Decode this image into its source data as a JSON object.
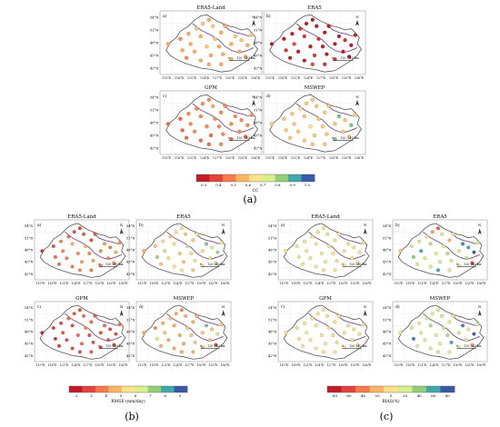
{
  "figure": {
    "group_labels": {
      "a": "(a)",
      "b": "(b)",
      "c": "(c)"
    }
  },
  "lat_ticks": [
    "54°N",
    "51°N",
    "48°N",
    "45°N",
    "42°N"
  ],
  "lon_ticks": [
    "115°E",
    "118°E",
    "121°E",
    "124°E",
    "127°E",
    "130°E",
    "133°E",
    "136°E"
  ],
  "scale_bar": {
    "labels": [
      "0",
      "120",
      "240 km"
    ]
  },
  "north_label": "N",
  "panel_titles": [
    "ERA5-Land",
    "ERA5",
    "GPM",
    "MSWEP"
  ],
  "panel_letters": [
    "a)",
    "b)",
    "c)",
    "d)"
  ],
  "colorbars": {
    "cc": {
      "label": "CC",
      "ticks": [
        "0.3",
        "0.4",
        "0.5",
        "0.6",
        "0.7",
        "0.8",
        "0.9",
        "1.0"
      ],
      "colors": [
        "#c21a27",
        "#e3413a",
        "#f77b4a",
        "#fdb463",
        "#fde28c",
        "#d9ef8b",
        "#92cf77",
        "#40a8ab",
        "#3a58a8"
      ]
    },
    "rmse": {
      "label": "RMSE (mm/day)",
      "ticks": [
        "2",
        "3",
        "4",
        "5",
        "6",
        "7",
        "8",
        "9"
      ],
      "colors": [
        "#c21a27",
        "#e3413a",
        "#f77b4a",
        "#fdb463",
        "#fde28c",
        "#d9ef8b",
        "#92cf77",
        "#40a8ab",
        "#3a58a8"
      ]
    },
    "bias": {
      "label": "BIAS(%)",
      "ticks": [
        "-80",
        "-60",
        "-40",
        "-20",
        "0",
        "20",
        "40",
        "60",
        "80"
      ],
      "colors": [
        "#c21a27",
        "#e3413a",
        "#f77b4a",
        "#fdb463",
        "#fde28c",
        "#d9ef8b",
        "#92cf77",
        "#40a8ab",
        "#3a58a8"
      ]
    }
  },
  "stations": [
    [
      0.08,
      0.52
    ],
    [
      0.2,
      0.44
    ],
    [
      0.28,
      0.36
    ],
    [
      0.36,
      0.28
    ],
    [
      0.42,
      0.2
    ],
    [
      0.48,
      0.14
    ],
    [
      0.52,
      0.24
    ],
    [
      0.4,
      0.4
    ],
    [
      0.3,
      0.52
    ],
    [
      0.22,
      0.62
    ],
    [
      0.34,
      0.64
    ],
    [
      0.46,
      0.56
    ],
    [
      0.54,
      0.44
    ],
    [
      0.6,
      0.34
    ],
    [
      0.64,
      0.24
    ],
    [
      0.58,
      0.56
    ],
    [
      0.5,
      0.7
    ],
    [
      0.4,
      0.78
    ],
    [
      0.62,
      0.68
    ],
    [
      0.7,
      0.52
    ],
    [
      0.74,
      0.4
    ],
    [
      0.8,
      0.46
    ],
    [
      0.86,
      0.54
    ],
    [
      0.78,
      0.64
    ],
    [
      0.7,
      0.76
    ],
    [
      0.84,
      0.72
    ],
    [
      0.9,
      0.38
    ],
    [
      0.6,
      0.84
    ],
    [
      0.48,
      0.84
    ],
    [
      0.26,
      0.74
    ]
  ],
  "station_values": {
    "cc": {
      "ERA5-Land": [
        0.55,
        0.5,
        0.55,
        0.6,
        0.6,
        0.55,
        0.6,
        0.55,
        0.55,
        0.55,
        0.55,
        0.6,
        0.6,
        0.55,
        0.55,
        0.55,
        0.55,
        0.55,
        0.55,
        0.55,
        0.6,
        0.6,
        0.55,
        0.55,
        0.55,
        0.55,
        0.6,
        0.55,
        0.55,
        0.5
      ],
      "ERA5": [
        0.3,
        0.3,
        0.3,
        0.35,
        0.3,
        0.3,
        0.3,
        0.35,
        0.4,
        0.35,
        0.3,
        0.3,
        0.35,
        0.3,
        0.3,
        0.3,
        0.35,
        0.3,
        0.3,
        0.3,
        0.3,
        0.35,
        0.3,
        0.3,
        0.35,
        0.3,
        0.3,
        0.35,
        0.4,
        0.3
      ],
      "GPM": [
        0.45,
        0.45,
        0.5,
        0.5,
        0.5,
        0.5,
        0.55,
        0.5,
        0.5,
        0.45,
        0.5,
        0.5,
        0.5,
        0.5,
        0.5,
        0.5,
        0.45,
        0.45,
        0.5,
        0.5,
        0.5,
        0.5,
        0.5,
        0.5,
        0.45,
        0.45,
        0.5,
        0.5,
        0.45,
        0.45
      ],
      "MSWEP": [
        0.6,
        0.6,
        0.6,
        0.65,
        0.6,
        0.6,
        0.6,
        0.6,
        0.6,
        0.6,
        0.6,
        0.65,
        0.6,
        0.6,
        0.6,
        0.6,
        0.6,
        0.6,
        0.6,
        0.6,
        0.85,
        0.6,
        0.85,
        0.6,
        0.85,
        0.6,
        0.6,
        0.6,
        0.6,
        0.6
      ]
    },
    "rmse": {
      "ERA5-Land": [
        2.5,
        3.0,
        4.0,
        3.5,
        3.0,
        2.8,
        3.2,
        4.5,
        4.0,
        3.5,
        3.8,
        4.0,
        4.5,
        3.0,
        3.2,
        4.0,
        4.2,
        3.8,
        4.4,
        4.0,
        4.2,
        3.8,
        4.5,
        4.0,
        3.8,
        4.2,
        4.0,
        3.8,
        4.0,
        3.5
      ],
      "ERA5": [
        4.5,
        5.0,
        5.5,
        5.0,
        5.5,
        6.0,
        5.0,
        5.5,
        6.5,
        7.0,
        5.5,
        5.0,
        6.5,
        5.0,
        5.5,
        6.5,
        5.0,
        5.5,
        6.0,
        6.0,
        7.5,
        6.0,
        7.0,
        6.0,
        5.5,
        6.5,
        5.5,
        5.0,
        5.5,
        5.0
      ],
      "GPM": [
        2.2,
        2.8,
        3.0,
        3.5,
        3.2,
        3.0,
        3.5,
        3.0,
        3.2,
        2.5,
        3.0,
        3.5,
        4.0,
        3.5,
        3.2,
        3.0,
        3.5,
        3.0,
        3.2,
        3.0,
        3.5,
        3.0,
        3.0,
        3.2,
        3.0,
        3.0,
        3.5,
        3.2,
        3.0,
        2.8
      ],
      "MSWEP": [
        4.5,
        4.0,
        4.5,
        5.0,
        4.5,
        4.0,
        4.5,
        4.5,
        5.0,
        6.0,
        4.5,
        4.5,
        5.0,
        4.5,
        4.5,
        5.0,
        4.5,
        4.5,
        5.0,
        5.0,
        7.5,
        5.0,
        6.5,
        5.0,
        4.5,
        3.0,
        5.0,
        4.5,
        4.5,
        4.5
      ]
    },
    "bias": {
      "ERA5-Land": [
        5,
        10,
        5,
        0,
        5,
        5,
        10,
        5,
        0,
        5,
        5,
        10,
        5,
        5,
        0,
        5,
        5,
        0,
        5,
        10,
        5,
        5,
        0,
        5,
        5,
        0,
        5,
        5,
        0,
        5
      ],
      "ERA5": [
        -10,
        10,
        20,
        10,
        -30,
        -50,
        15,
        30,
        60,
        40,
        20,
        10,
        20,
        -20,
        10,
        30,
        10,
        20,
        15,
        20,
        70,
        60,
        80,
        30,
        10,
        -60,
        20,
        10,
        60,
        20
      ],
      "GPM": [
        0,
        5,
        0,
        5,
        0,
        0,
        5,
        10,
        5,
        0,
        0,
        5,
        0,
        0,
        0,
        5,
        0,
        0,
        5,
        0,
        5,
        0,
        0,
        5,
        0,
        0,
        5,
        0,
        0,
        0
      ],
      "MSWEP": [
        10,
        20,
        10,
        15,
        10,
        10,
        20,
        30,
        20,
        70,
        10,
        10,
        20,
        10,
        10,
        30,
        10,
        20,
        60,
        20,
        70,
        10,
        80,
        20,
        10,
        -20,
        20,
        10,
        20,
        10
      ]
    }
  }
}
